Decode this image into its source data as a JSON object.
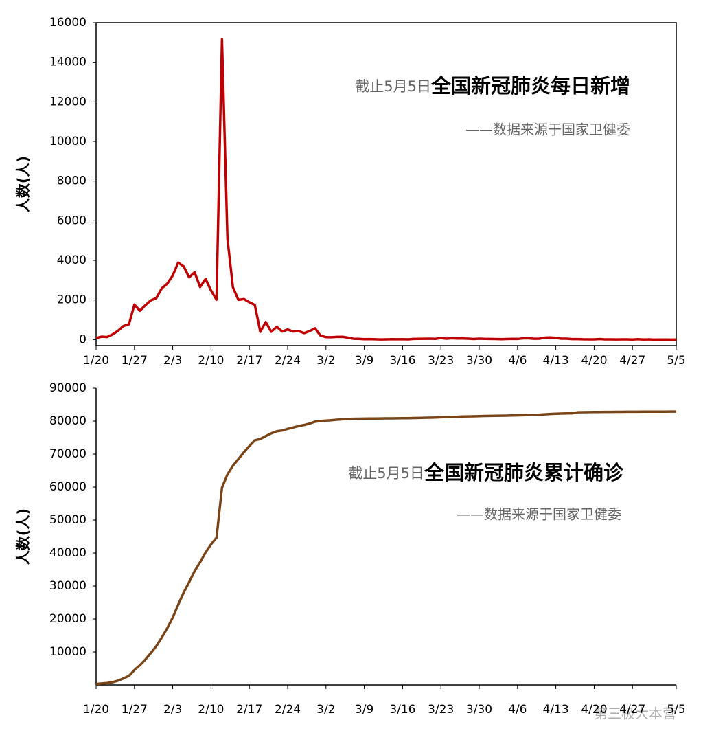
{
  "chart_data": [
    {
      "type": "line",
      "title": "全国新冠肺炎每日新增",
      "annotation": "截止5月5日",
      "subtitle": "——数据来源于国家卫健委",
      "ylabel": "人数(人)",
      "color": "#c00000",
      "frame": true,
      "ylim": [
        -300,
        16000
      ],
      "yticks": [
        0,
        2000,
        4000,
        6000,
        8000,
        10000,
        12000,
        14000,
        16000
      ],
      "categories": [
        "1/20",
        null,
        null,
        null,
        null,
        null,
        null,
        "1/27",
        null,
        null,
        null,
        null,
        null,
        null,
        "2/3",
        null,
        null,
        null,
        null,
        null,
        null,
        "2/10",
        null,
        null,
        null,
        null,
        null,
        null,
        "2/17",
        null,
        null,
        null,
        null,
        null,
        null,
        "2/24",
        null,
        null,
        null,
        null,
        null,
        null,
        "3/2",
        null,
        null,
        null,
        null,
        null,
        null,
        "3/9",
        null,
        null,
        null,
        null,
        null,
        null,
        "3/16",
        null,
        null,
        null,
        null,
        null,
        null,
        "3/23",
        null,
        null,
        null,
        null,
        null,
        null,
        "3/30",
        null,
        null,
        null,
        null,
        null,
        null,
        "4/6",
        null,
        null,
        null,
        null,
        null,
        null,
        "4/13",
        null,
        null,
        null,
        null,
        null,
        null,
        "4/20",
        null,
        null,
        null,
        null,
        null,
        null,
        "4/27",
        null,
        null,
        null,
        null,
        null,
        null,
        null,
        "5/5"
      ],
      "values": [
        77,
        149,
        131,
        259,
        444,
        688,
        769,
        1771,
        1459,
        1737,
        1981,
        2099,
        2589,
        2825,
        3235,
        3887,
        3694,
        3143,
        3399,
        2656,
        3062,
        2478,
        2015,
        15152,
        5090,
        2641,
        2009,
        2048,
        1886,
        1749,
        394,
        889,
        397,
        648,
        409,
        508,
        406,
        433,
        327,
        427,
        573,
        202,
        125,
        119,
        139,
        143,
        99,
        44,
        40,
        19,
        24,
        15,
        8,
        11,
        20,
        16,
        21,
        13,
        34,
        39,
        41,
        46,
        39,
        78,
        47,
        67,
        55,
        54,
        45,
        31,
        48,
        36,
        35,
        31,
        19,
        30,
        39,
        32,
        62,
        63,
        42,
        46,
        99,
        108,
        89,
        46,
        46,
        26,
        27,
        16,
        12,
        11,
        30,
        10,
        10,
        6,
        12,
        11,
        3,
        22,
        4,
        12,
        1,
        2,
        3,
        1,
        2
      ]
    },
    {
      "type": "line",
      "title": "全国新冠肺炎累计确诊",
      "annotation": "截止5月5日",
      "subtitle": "——数据来源于国家卫健委",
      "ylabel": "人数(人)",
      "color": "#7a4416",
      "frame": false,
      "ylim": [
        0,
        90000
      ],
      "yticks": [
        10000,
        20000,
        30000,
        40000,
        50000,
        60000,
        70000,
        80000,
        90000
      ],
      "categories": [
        "1/20",
        null,
        null,
        null,
        null,
        null,
        null,
        "1/27",
        null,
        null,
        null,
        null,
        null,
        null,
        "2/3",
        null,
        null,
        null,
        null,
        null,
        null,
        "2/10",
        null,
        null,
        null,
        null,
        null,
        null,
        "2/17",
        null,
        null,
        null,
        null,
        null,
        null,
        "2/24",
        null,
        null,
        null,
        null,
        null,
        null,
        "3/2",
        null,
        null,
        null,
        null,
        null,
        null,
        "3/9",
        null,
        null,
        null,
        null,
        null,
        null,
        "3/16",
        null,
        null,
        null,
        null,
        null,
        null,
        "3/23",
        null,
        null,
        null,
        null,
        null,
        null,
        "3/30",
        null,
        null,
        null,
        null,
        null,
        null,
        "4/6",
        null,
        null,
        null,
        null,
        null,
        null,
        "4/13",
        null,
        null,
        null,
        null,
        null,
        null,
        "4/20",
        null,
        null,
        null,
        null,
        null,
        null,
        "4/27",
        null,
        null,
        null,
        null,
        null,
        null,
        null,
        "5/5"
      ],
      "values": [
        291,
        440,
        571,
        830,
        1287,
        1975,
        2744,
        4515,
        5974,
        7711,
        9692,
        11791,
        14380,
        17205,
        20438,
        24324,
        28018,
        31161,
        34546,
        37198,
        40171,
        42638,
        44653,
        59804,
        63851,
        66492,
        68500,
        70548,
        72436,
        74185,
        74576,
        75465,
        76288,
        76936,
        77150,
        77658,
        78064,
        78497,
        78824,
        79251,
        79824,
        80026,
        80151,
        80270,
        80409,
        80552,
        80651,
        80695,
        80735,
        80754,
        80778,
        80793,
        80813,
        80824,
        80844,
        80860,
        80881,
        80894,
        80928,
        80967,
        81008,
        81054,
        81093,
        81171,
        81218,
        81285,
        81340,
        81394,
        81439,
        81470,
        81518,
        81554,
        81589,
        81620,
        81639,
        81669,
        81708,
        81740,
        81802,
        81865,
        81907,
        81953,
        82052,
        82160,
        82249,
        82295,
        82341,
        82367,
        82692,
        82719,
        82735,
        82747,
        82758,
        82788,
        82798,
        82804,
        82816,
        82827,
        82830,
        82836,
        82858,
        82862,
        82874,
        82875,
        82877,
        82880,
        82881
      ]
    }
  ],
  "watermark": "第三极大本营"
}
